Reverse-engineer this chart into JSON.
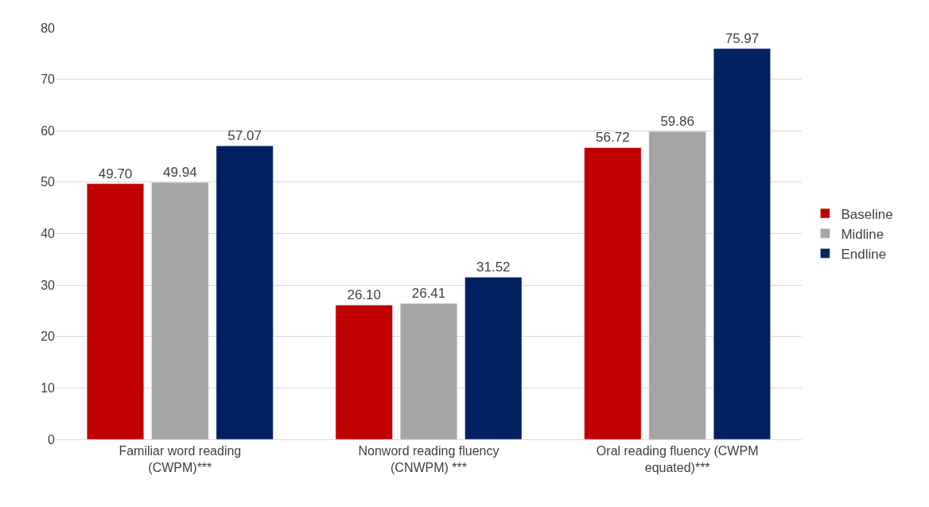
{
  "chart_data": {
    "type": "bar",
    "categories": [
      "Familiar word reading\n(CWPM)***",
      "Nonword reading fluency\n(CNWPM) ***",
      "Oral reading fluency (CWPM\nequated)***"
    ],
    "series": [
      {
        "name": "Baseline",
        "color": "#c00000",
        "values": [
          49.7,
          26.1,
          56.72
        ],
        "value_labels": [
          "49.70",
          "26.10",
          "56.72"
        ]
      },
      {
        "name": "Midline",
        "color": "#a5a5a5",
        "values": [
          49.94,
          26.41,
          59.86
        ],
        "value_labels": [
          "49.94",
          "26.41",
          "59.86"
        ]
      },
      {
        "name": "Endline",
        "color": "#002060",
        "values": [
          57.07,
          31.52,
          75.97
        ],
        "value_labels": [
          "57.07",
          "31.52",
          "75.97"
        ]
      }
    ],
    "ylim": [
      0,
      80
    ],
    "yticks": [
      0,
      10,
      20,
      30,
      40,
      50,
      60,
      70,
      80
    ],
    "grid": "y",
    "legend": "right"
  }
}
